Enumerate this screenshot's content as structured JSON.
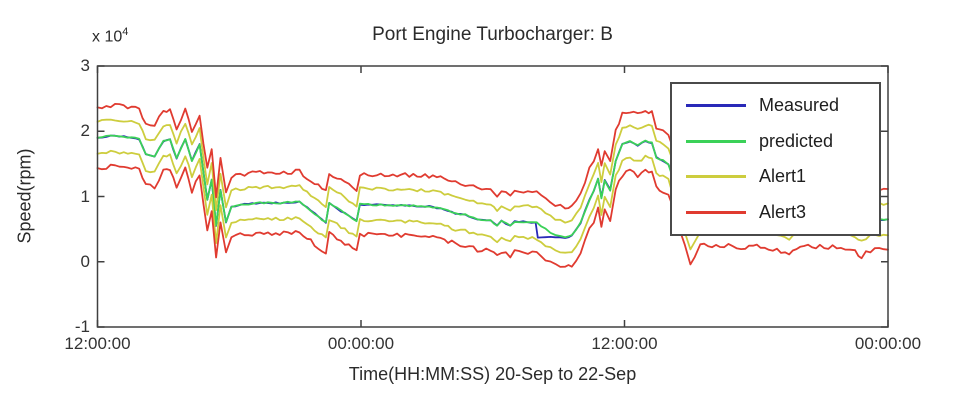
{
  "chart_data": {
    "type": "line",
    "title": "Port Engine Turbocharger: B",
    "xlabel": "Time(HH:MM:SS) 20-Sep to 22-Sep",
    "ylabel": "Speed(rpm)",
    "y_scale_label": {
      "base": "x 10",
      "exponent": "4"
    },
    "grid": false,
    "legend_position": "upper right",
    "x_axis": {
      "range_hours": [
        0,
        36
      ],
      "start": "20-Sep 12:00:00",
      "end": "22-Sep 00:00:00",
      "tick_hours": [
        0,
        12,
        24,
        36
      ],
      "tick_labels": [
        "12:00:00",
        "00:00:00",
        "12:00:00",
        "00:00:00"
      ]
    },
    "y_axis": {
      "range_rpm": [
        -10000,
        30000
      ],
      "tick_values": [
        30000,
        20000,
        10000,
        0,
        -10000
      ],
      "tick_labels": [
        "3",
        "2",
        "1",
        "0",
        "-1"
      ]
    },
    "legend": [
      {
        "label": "Measured",
        "color": "#2929b8"
      },
      {
        "label": "predicted",
        "color": "#3bd158"
      },
      {
        "label": "Alert1",
        "color": "#cdcd3e"
      },
      {
        "label": "Alert3",
        "color": "#e03b30"
      }
    ],
    "series": [
      {
        "name": "Measured",
        "style": "line",
        "color": "#2929b8",
        "noise_rpm": 110,
        "points": [
          [
            0,
            19000
          ],
          [
            0.6,
            19300
          ],
          [
            1.2,
            19200
          ],
          [
            1.9,
            18800
          ],
          [
            2.2,
            16500
          ],
          [
            2.6,
            16200
          ],
          [
            3,
            18500
          ],
          [
            3.3,
            18700
          ],
          [
            3.6,
            15800
          ],
          [
            4,
            18800
          ],
          [
            4.3,
            15500
          ],
          [
            4.65,
            18000
          ],
          [
            5,
            9500
          ],
          [
            5.2,
            12500
          ],
          [
            5.4,
            5500
          ],
          [
            5.6,
            11000
          ],
          [
            5.85,
            6000
          ],
          [
            6.1,
            8500
          ],
          [
            6.7,
            8800
          ],
          [
            7.4,
            9000
          ],
          [
            8.3,
            9000
          ],
          [
            9.2,
            9200
          ],
          [
            10.4,
            6000
          ],
          [
            10.55,
            9000
          ],
          [
            11.8,
            6200
          ],
          [
            11.95,
            8800
          ],
          [
            12.9,
            8700
          ],
          [
            14.2,
            8600
          ],
          [
            15.1,
            8500
          ],
          [
            15.8,
            8000
          ],
          [
            16.3,
            7400
          ],
          [
            16.75,
            7200
          ],
          [
            17.3,
            6500
          ],
          [
            17.9,
            6300
          ],
          [
            18.2,
            5500
          ],
          [
            18.4,
            6200
          ],
          [
            18.8,
            5500
          ],
          [
            19,
            6200
          ],
          [
            19.95,
            6000
          ],
          [
            20.05,
            3700
          ],
          [
            20.4,
            3700
          ],
          [
            20.85,
            3700
          ],
          [
            21.3,
            3700
          ],
          [
            21.6,
            4000
          ],
          [
            22,
            6000
          ],
          [
            22.4,
            9500
          ],
          [
            22.6,
            10800
          ],
          [
            22.8,
            12800
          ],
          [
            22.95,
            9800
          ],
          [
            23.1,
            12500
          ],
          [
            23.35,
            11000
          ],
          [
            23.6,
            15500
          ],
          [
            23.9,
            18000
          ],
          [
            24.25,
            18500
          ],
          [
            24.6,
            17800
          ],
          [
            24.95,
            18500
          ],
          [
            25.25,
            18200
          ],
          [
            25.45,
            16000
          ],
          [
            25.75,
            15500
          ],
          [
            26,
            15000
          ],
          [
            26.3,
            12000
          ],
          [
            26.75,
            7000
          ],
          [
            27,
            4500
          ],
          [
            27.2,
            5500
          ],
          [
            27.45,
            7200
          ],
          [
            28.35,
            7200
          ],
          [
            29.5,
            6800
          ],
          [
            30.2,
            7000
          ],
          [
            31.5,
            6000
          ],
          [
            32,
            7000
          ],
          [
            32.9,
            7000
          ],
          [
            34.05,
            6800
          ],
          [
            34.5,
            6200
          ],
          [
            34.8,
            5500
          ],
          [
            35.2,
            6400
          ],
          [
            36,
            6500
          ]
        ]
      },
      {
        "name": "predicted",
        "style": "line",
        "color": "#3bd158",
        "noise_rpm": 110,
        "points": [
          [
            0,
            19000
          ],
          [
            0.6,
            19300
          ],
          [
            1.2,
            19200
          ],
          [
            1.9,
            18800
          ],
          [
            2.2,
            16500
          ],
          [
            2.6,
            16200
          ],
          [
            3,
            18500
          ],
          [
            3.3,
            18700
          ],
          [
            3.6,
            15800
          ],
          [
            4,
            18800
          ],
          [
            4.3,
            15500
          ],
          [
            4.65,
            18000
          ],
          [
            5,
            9500
          ],
          [
            5.2,
            12500
          ],
          [
            5.4,
            5500
          ],
          [
            5.6,
            11000
          ],
          [
            5.85,
            6000
          ],
          [
            6.1,
            8500
          ],
          [
            6.7,
            8800
          ],
          [
            7.4,
            9000
          ],
          [
            8.3,
            9000
          ],
          [
            9.2,
            9200
          ],
          [
            10.4,
            6000
          ],
          [
            10.55,
            9000
          ],
          [
            11.8,
            6200
          ],
          [
            11.95,
            8800
          ],
          [
            12.9,
            8700
          ],
          [
            14.2,
            8600
          ],
          [
            15.1,
            8500
          ],
          [
            15.8,
            8000
          ],
          [
            16.3,
            7400
          ],
          [
            16.75,
            7200
          ],
          [
            17.3,
            6500
          ],
          [
            17.9,
            6300
          ],
          [
            18.2,
            5500
          ],
          [
            18.4,
            6200
          ],
          [
            18.8,
            5500
          ],
          [
            19,
            6200
          ],
          [
            20,
            6000
          ],
          [
            20.4,
            5000
          ],
          [
            20.85,
            4000
          ],
          [
            21.3,
            3700
          ],
          [
            21.6,
            4000
          ],
          [
            22,
            6000
          ],
          [
            22.4,
            9500
          ],
          [
            22.6,
            10800
          ],
          [
            22.8,
            12800
          ],
          [
            22.95,
            9800
          ],
          [
            23.1,
            12500
          ],
          [
            23.35,
            11000
          ],
          [
            23.6,
            15500
          ],
          [
            23.9,
            18000
          ],
          [
            24.25,
            18500
          ],
          [
            24.6,
            17800
          ],
          [
            24.95,
            18500
          ],
          [
            25.25,
            18200
          ],
          [
            25.45,
            16000
          ],
          [
            25.75,
            15500
          ],
          [
            26,
            15000
          ],
          [
            26.3,
            12000
          ],
          [
            26.75,
            7000
          ],
          [
            27,
            4500
          ],
          [
            27.2,
            5500
          ],
          [
            27.45,
            7200
          ],
          [
            28.35,
            7200
          ],
          [
            29.5,
            6800
          ],
          [
            30.2,
            7000
          ],
          [
            31.5,
            6000
          ],
          [
            32,
            7000
          ],
          [
            32.9,
            7000
          ],
          [
            34.05,
            6800
          ],
          [
            34.5,
            6200
          ],
          [
            34.8,
            5500
          ],
          [
            35.2,
            6400
          ],
          [
            36,
            6500
          ]
        ]
      },
      {
        "name": "Alert1",
        "style": "band",
        "base": "predicted",
        "color": "#cdcd3e",
        "offset_rpm": 2450,
        "noise_rpm": 220
      },
      {
        "name": "Alert3",
        "style": "band",
        "base": "predicted",
        "color": "#e03b30",
        "offset_rpm": 4650,
        "noise_rpm": 330
      }
    ]
  }
}
